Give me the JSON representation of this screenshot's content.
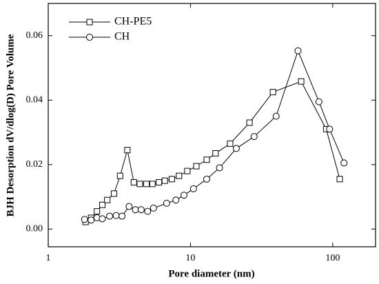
{
  "chart_data": {
    "type": "line",
    "xlabel": "Pore diameter (nm)",
    "ylabel": "BJH Desorption dV/dlog(D) Pore Volume",
    "xscale": "log",
    "xlim": [
      1,
      200
    ],
    "xticks": [
      1,
      10,
      100
    ],
    "ylim": [
      -0.0055,
      0.07
    ],
    "yticks": [
      {
        "value": 0,
        "label": "0.00"
      },
      {
        "value": 0.02,
        "label": "0.02"
      },
      {
        "value": 0.04,
        "label": "0.04"
      },
      {
        "value": 0.06,
        "label": "0.06"
      }
    ],
    "legend": "upper left",
    "series": [
      {
        "name": "CH-PE5",
        "color": "#000000",
        "marker": "square",
        "x": [
          1.83,
          2.0,
          2.2,
          2.4,
          2.6,
          2.9,
          3.2,
          3.6,
          4.0,
          4.4,
          4.9,
          5.4,
          6.0,
          6.6,
          7.4,
          8.3,
          9.5,
          11,
          13,
          15,
          19,
          26,
          38,
          60,
          90,
          112
        ],
        "values": [
          0.0022,
          0.0035,
          0.0055,
          0.0075,
          0.009,
          0.011,
          0.0165,
          0.0245,
          0.0145,
          0.014,
          0.014,
          0.014,
          0.0145,
          0.015,
          0.0155,
          0.0165,
          0.018,
          0.0195,
          0.0215,
          0.0235,
          0.0265,
          0.033,
          0.0425,
          0.0458,
          0.031,
          0.0155
        ]
      },
      {
        "name": "CH",
        "color": "#000000",
        "marker": "circle",
        "x": [
          1.8,
          2.0,
          2.2,
          2.4,
          2.7,
          3.0,
          3.3,
          3.7,
          4.1,
          4.5,
          5.0,
          5.5,
          6.8,
          7.9,
          9.0,
          10.5,
          13,
          16,
          21,
          28,
          40,
          57,
          80,
          95,
          120
        ],
        "values": [
          0.003,
          0.0028,
          0.0035,
          0.0032,
          0.004,
          0.0042,
          0.004,
          0.007,
          0.006,
          0.006,
          0.0055,
          0.0065,
          0.008,
          0.009,
          0.0105,
          0.0125,
          0.0155,
          0.019,
          0.025,
          0.0287,
          0.035,
          0.0553,
          0.0395,
          0.031,
          0.0205
        ]
      }
    ]
  }
}
